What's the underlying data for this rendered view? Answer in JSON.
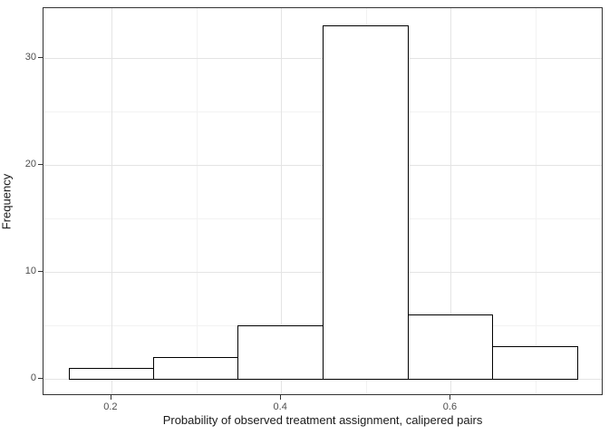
{
  "chart_data": {
    "type": "bar",
    "subtype": "histogram",
    "title": "",
    "xlabel": "Probability of observed treatment assignment, calipered pairs",
    "ylabel": "Frequency",
    "bin_edges": [
      0.15,
      0.25,
      0.35,
      0.45,
      0.55,
      0.65,
      0.75
    ],
    "counts": [
      1,
      2,
      5,
      33,
      6,
      3
    ],
    "xlim": [
      0.12,
      0.78
    ],
    "ylim": [
      -1.65,
      34.65
    ],
    "x_major_ticks": [
      0.2,
      0.4,
      0.6
    ],
    "x_tick_labels": [
      "0.2",
      "0.4",
      "0.6"
    ],
    "x_minor_ticks": [
      0.3,
      0.5,
      0.7
    ],
    "y_major_ticks": [
      0,
      10,
      20,
      30
    ],
    "y_tick_labels": [
      "0",
      "10",
      "20",
      "30"
    ],
    "y_minor_ticks": [
      5,
      15,
      25
    ],
    "grid": true,
    "legend": false,
    "colors": {
      "background": "#ffffff",
      "panel_border": "#333333",
      "grid_major": "#e4e4e4",
      "grid_minor": "#f2f2f2",
      "bar_fill": "#ffffff",
      "bar_border": "#000000",
      "tick_mark": "#333333",
      "tick_label": "#4d4d4d",
      "axis_title": "#1a1a1a"
    }
  }
}
